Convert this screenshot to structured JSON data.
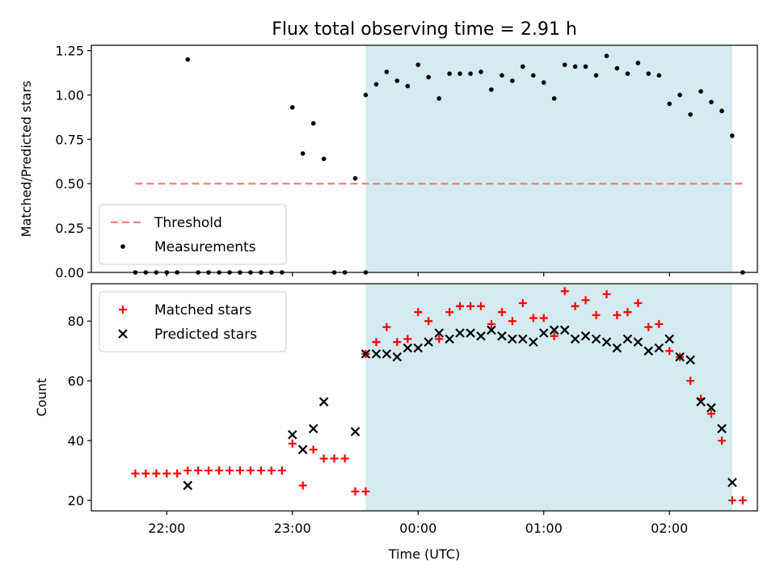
{
  "chart_data": {
    "title": "Flux total observing time = 2.91 h",
    "xlabel": "Time (UTC)",
    "x_unit": "time of day (UTC), hours past 00:00",
    "xlim": [
      -2.6,
      2.7
    ],
    "xticks": [
      -2,
      -1,
      0,
      1,
      2
    ],
    "xtick_labels": [
      "22:00",
      "23:00",
      "00:00",
      "01:00",
      "02:00"
    ],
    "highlight_span": {
      "x0": -0.417,
      "x1": 2.5,
      "color": "#d4ebf1"
    },
    "panels": [
      {
        "type": "scatter",
        "ylabel": "Matched/Predicted stars",
        "ylim": [
          0,
          1.28
        ],
        "yticks": [
          0,
          0.25,
          0.5,
          0.75,
          1.0,
          1.25
        ],
        "ytick_labels": [
          "0.00",
          "0.25",
          "0.50",
          "0.75",
          "1.00",
          "1.25"
        ],
        "legend_position": "lower-left",
        "threshold": {
          "name": "Threshold",
          "y": 0.5,
          "x_from": -2.25,
          "x_to": 2.58,
          "color": "#f08080"
        },
        "series": [
          {
            "name": "Measurements",
            "marker": "dot",
            "color": "#000000",
            "points": [
              [
                -2.25,
                0
              ],
              [
                -2.167,
                0
              ],
              [
                -2.083,
                0
              ],
              [
                -2.0,
                0
              ],
              [
                -1.917,
                0
              ],
              [
                -1.833,
                1.2
              ],
              [
                -1.75,
                0
              ],
              [
                -1.667,
                0
              ],
              [
                -1.583,
                0
              ],
              [
                -1.5,
                0
              ],
              [
                -1.417,
                0
              ],
              [
                -1.333,
                0
              ],
              [
                -1.25,
                0
              ],
              [
                -1.167,
                0
              ],
              [
                -1.083,
                0
              ],
              [
                -1.0,
                0.93
              ],
              [
                -0.917,
                0.67
              ],
              [
                -0.833,
                0.84
              ],
              [
                -0.75,
                0.64
              ],
              [
                -0.667,
                0
              ],
              [
                -0.583,
                0
              ],
              [
                -0.5,
                0.53
              ],
              [
                -0.417,
                0
              ],
              [
                -0.417,
                1.0
              ],
              [
                -0.333,
                1.06
              ],
              [
                -0.25,
                1.13
              ],
              [
                -0.167,
                1.08
              ],
              [
                -0.083,
                1.05
              ],
              [
                0.0,
                1.17
              ],
              [
                0.083,
                1.1
              ],
              [
                0.167,
                0.98
              ],
              [
                0.25,
                1.12
              ],
              [
                0.333,
                1.12
              ],
              [
                0.417,
                1.12
              ],
              [
                0.5,
                1.13
              ],
              [
                0.583,
                1.03
              ],
              [
                0.667,
                1.11
              ],
              [
                0.75,
                1.08
              ],
              [
                0.833,
                1.16
              ],
              [
                0.917,
                1.11
              ],
              [
                1.0,
                1.07
              ],
              [
                1.083,
                0.98
              ],
              [
                1.167,
                1.17
              ],
              [
                1.25,
                1.16
              ],
              [
                1.333,
                1.16
              ],
              [
                1.417,
                1.11
              ],
              [
                1.5,
                1.22
              ],
              [
                1.583,
                1.15
              ],
              [
                1.667,
                1.12
              ],
              [
                1.75,
                1.18
              ],
              [
                1.833,
                1.12
              ],
              [
                1.917,
                1.11
              ],
              [
                2.0,
                0.95
              ],
              [
                2.083,
                1.0
              ],
              [
                2.167,
                0.89
              ],
              [
                2.25,
                1.02
              ],
              [
                2.333,
                0.96
              ],
              [
                2.417,
                0.91
              ],
              [
                2.5,
                0.77
              ],
              [
                2.583,
                0
              ]
            ]
          }
        ]
      },
      {
        "type": "scatter",
        "ylabel": "Count",
        "ylim": [
          16.5,
          92.5
        ],
        "yticks": [
          20,
          40,
          60,
          80
        ],
        "ytick_labels": [
          "20",
          "40",
          "60",
          "80"
        ],
        "legend_position": "upper-left",
        "series": [
          {
            "name": "Matched stars",
            "marker": "plus",
            "color": "#ff0000",
            "points": [
              [
                -2.25,
                29
              ],
              [
                -2.167,
                29
              ],
              [
                -2.083,
                29
              ],
              [
                -2.0,
                29
              ],
              [
                -1.917,
                29
              ],
              [
                -1.833,
                30
              ],
              [
                -1.75,
                30
              ],
              [
                -1.667,
                30
              ],
              [
                -1.583,
                30
              ],
              [
                -1.5,
                30
              ],
              [
                -1.417,
                30
              ],
              [
                -1.333,
                30
              ],
              [
                -1.25,
                30
              ],
              [
                -1.167,
                30
              ],
              [
                -1.083,
                30
              ],
              [
                -1.0,
                39
              ],
              [
                -0.917,
                25
              ],
              [
                -0.833,
                37
              ],
              [
                -0.75,
                34
              ],
              [
                -0.667,
                34
              ],
              [
                -0.583,
                34
              ],
              [
                -0.5,
                23
              ],
              [
                -0.417,
                23
              ],
              [
                -0.417,
                69
              ],
              [
                -0.333,
                73
              ],
              [
                -0.25,
                78
              ],
              [
                -0.167,
                73
              ],
              [
                -0.083,
                74
              ],
              [
                0.0,
                83
              ],
              [
                0.083,
                80
              ],
              [
                0.167,
                74
              ],
              [
                0.25,
                83
              ],
              [
                0.333,
                85
              ],
              [
                0.417,
                85
              ],
              [
                0.5,
                85
              ],
              [
                0.583,
                79
              ],
              [
                0.667,
                83
              ],
              [
                0.75,
                80
              ],
              [
                0.833,
                86
              ],
              [
                0.917,
                81
              ],
              [
                1.0,
                81
              ],
              [
                1.083,
                75
              ],
              [
                1.167,
                90
              ],
              [
                1.25,
                85
              ],
              [
                1.333,
                87
              ],
              [
                1.417,
                82
              ],
              [
                1.5,
                89
              ],
              [
                1.583,
                82
              ],
              [
                1.667,
                83
              ],
              [
                1.75,
                86
              ],
              [
                1.833,
                78
              ],
              [
                1.917,
                79
              ],
              [
                2.0,
                70
              ],
              [
                2.083,
                68
              ],
              [
                2.167,
                60
              ],
              [
                2.25,
                54
              ],
              [
                2.333,
                49
              ],
              [
                2.417,
                40
              ],
              [
                2.5,
                20
              ],
              [
                2.583,
                20
              ]
            ]
          },
          {
            "name": "Predicted stars",
            "marker": "x",
            "color": "#000000",
            "points": [
              [
                -1.833,
                25
              ],
              [
                -1.0,
                42
              ],
              [
                -0.917,
                37
              ],
              [
                -0.833,
                44
              ],
              [
                -0.75,
                53
              ],
              [
                -0.5,
                43
              ],
              [
                -0.417,
                69
              ],
              [
                -0.333,
                69
              ],
              [
                -0.25,
                69
              ],
              [
                -0.167,
                68
              ],
              [
                -0.083,
                71
              ],
              [
                0.0,
                71
              ],
              [
                0.083,
                73
              ],
              [
                0.167,
                76
              ],
              [
                0.25,
                74
              ],
              [
                0.333,
                76
              ],
              [
                0.417,
                76
              ],
              [
                0.5,
                75
              ],
              [
                0.583,
                77
              ],
              [
                0.667,
                75
              ],
              [
                0.75,
                74
              ],
              [
                0.833,
                74
              ],
              [
                0.917,
                73
              ],
              [
                1.0,
                76
              ],
              [
                1.083,
                77
              ],
              [
                1.167,
                77
              ],
              [
                1.25,
                74
              ],
              [
                1.333,
                75
              ],
              [
                1.417,
                74
              ],
              [
                1.5,
                73
              ],
              [
                1.583,
                71
              ],
              [
                1.667,
                74
              ],
              [
                1.75,
                73
              ],
              [
                1.833,
                70
              ],
              [
                1.917,
                71
              ],
              [
                2.0,
                74
              ],
              [
                2.083,
                68
              ],
              [
                2.167,
                67
              ],
              [
                2.25,
                53
              ],
              [
                2.333,
                51
              ],
              [
                2.417,
                44
              ],
              [
                2.5,
                26
              ]
            ]
          }
        ]
      }
    ]
  }
}
